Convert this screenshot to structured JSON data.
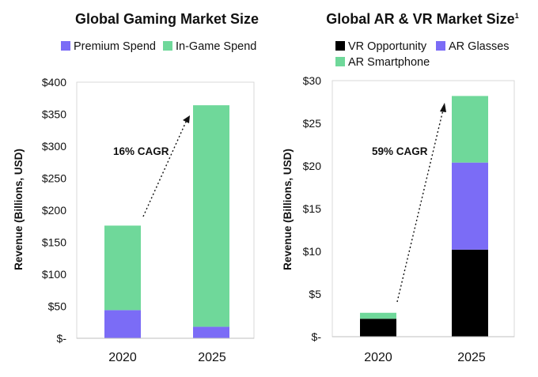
{
  "colors": {
    "premium": "#7b6cf6",
    "ingame": "#6fd89a",
    "vr": "#000000",
    "ar_glasses": "#7b6cf6",
    "ar_smartphone": "#6fd89a"
  },
  "chart_data": [
    {
      "type": "bar",
      "stacked": true,
      "title": "Global Gaming Market Size",
      "ylabel": "Revenue (Billions, USD)",
      "categories": [
        "2020",
        "2025"
      ],
      "ylim": [
        0,
        400
      ],
      "yticks": [
        0,
        50,
        100,
        150,
        200,
        250,
        300,
        350,
        400
      ],
      "ytick_labels": [
        "$-",
        "$50",
        "$100",
        "$150",
        "$200",
        "$250",
        "$300",
        "$350",
        "$400"
      ],
      "legend_position": "top",
      "series": [
        {
          "name": "Premium Spend",
          "values": [
            44,
            18
          ],
          "color": "#7b6cf6"
        },
        {
          "name": "In-Game Spend",
          "values": [
            132,
            346
          ],
          "color": "#6fd89a"
        }
      ],
      "annotation": "16% CAGR"
    },
    {
      "type": "bar",
      "stacked": true,
      "title": "Global AR & VR Market Size",
      "title_superscript": "1",
      "ylabel": "Revenue (Billions, USD)",
      "categories": [
        "2020",
        "2025"
      ],
      "ylim": [
        0,
        30
      ],
      "yticks": [
        0,
        5,
        10,
        15,
        20,
        25,
        30
      ],
      "ytick_labels": [
        "$-",
        "$5",
        "$10",
        "$15",
        "$20",
        "$25",
        "$30"
      ],
      "legend_position": "top",
      "series": [
        {
          "name": "VR Opportunity",
          "values": [
            2.1,
            10.2
          ],
          "color": "#000000"
        },
        {
          "name": "AR Glasses",
          "values": [
            0.0,
            10.2
          ],
          "color": "#7b6cf6"
        },
        {
          "name": "AR Smartphone",
          "values": [
            0.7,
            7.8
          ],
          "color": "#6fd89a"
        }
      ],
      "annotation": "59% CAGR"
    }
  ]
}
